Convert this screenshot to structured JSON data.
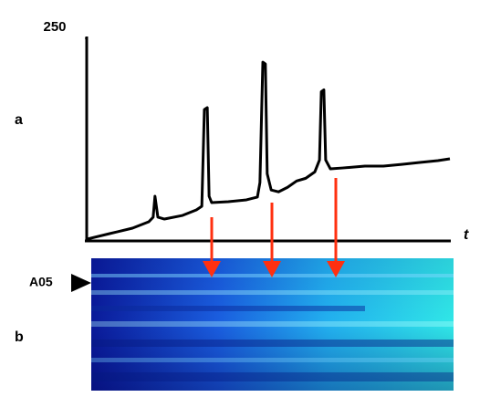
{
  "chart_data": {
    "type": "line",
    "panel_labels": [
      "a",
      "b"
    ],
    "x_label": "t",
    "annotation": "A05",
    "xlim": [
      0,
      100
    ],
    "ylim": [
      0,
      250
    ],
    "yticks": [
      250
    ],
    "x": [
      0,
      6.3,
      12.6,
      17.1,
      18.3,
      18.8,
      19.6,
      21.4,
      26.4,
      30.2,
      31.7,
      32.4,
      33.2,
      33.7,
      34.4,
      39.0,
      44.0,
      47.0,
      47.7,
      48.5,
      49.2,
      49.7,
      50.8,
      52.8,
      55.3,
      57.8,
      60.3,
      62.8,
      64.1,
      64.6,
      65.3,
      65.8,
      67.1,
      70.4,
      76.6,
      81.7,
      86.7,
      91.7,
      96.7,
      100
    ],
    "series": [
      {
        "color": "#000000",
        "values": [
          1.1,
          7.9,
          14.7,
          22.6,
          28.3,
          54.3,
          28.3,
          26.0,
          30.5,
          37.3,
          41.9,
          161.8,
          164.1,
          54.3,
          46.4,
          47.5,
          49.8,
          53.2,
          71.3,
          220.5,
          218.2,
          82.2,
          62.0,
          59.7,
          65.3,
          73.2,
          76.5,
          84.4,
          99.2,
          183.9,
          186.2,
          99.2,
          88.2,
          89.3,
          91.6,
          91.6,
          93.8,
          96.1,
          98.4,
          100.7
        ]
      }
    ]
  }
}
